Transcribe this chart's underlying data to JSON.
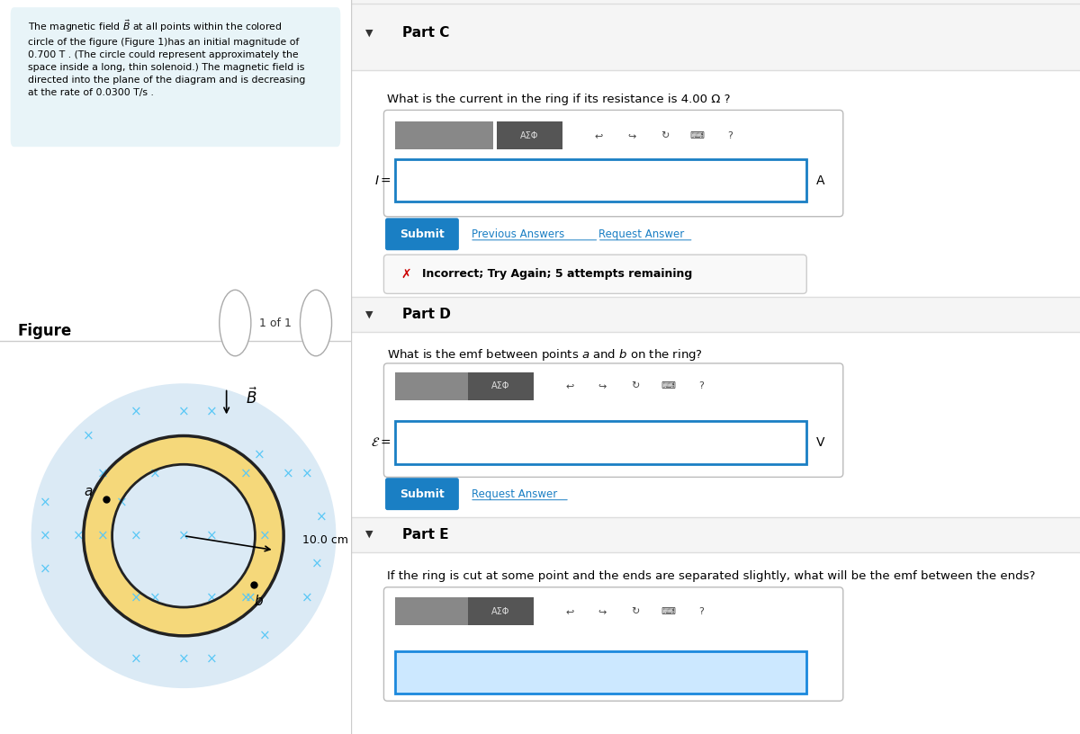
{
  "fig_width": 12.0,
  "fig_height": 8.16,
  "dpi": 100,
  "left_panel_bg": "#e8f4f8",
  "left_panel_text": "The magnetic field $\\vec{B}$ at all points within the colored\ncircle of the figure (Figure 1)has an initial magnitude of\n0.700 T . (The circle could represent approximately the\nspace inside a long, thin solenoid.) The magnetic field is\ndirected into the plane of the diagram and is decreasing\nat the rate of 0.0300 T/s .",
  "figure_label": "Figure",
  "nav_text": "1 of 1",
  "circle_bg": "#dbeaf5",
  "ring_outer_color": "#f5d87a",
  "ring_inner_color": "#f5d87a",
  "ring_border_color": "#222222",
  "x_color": "#5bc8f5",
  "B_label": "$\\vec{B}$",
  "radius_label": "10.0 cm",
  "point_a_label": "$a$",
  "point_b_label": "$b$",
  "part_c_header": "Part C",
  "part_c_question": "What is the current in the ring if its resistance is 4.00 Ω ?",
  "part_c_input_label": "$I =$",
  "part_c_unit": "A",
  "part_c_submit": "Submit",
  "part_c_prev": "Previous Answers",
  "part_c_req": "Request Answer",
  "part_c_incorrect": "Incorrect; Try Again; 5 attempts remaining",
  "part_d_header": "Part D",
  "part_d_question": "What is the emf between points $a$ and $b$ on the ring?",
  "part_d_input_label": "$\\mathcal{E} =$",
  "part_d_unit": "V",
  "part_d_submit": "Submit",
  "part_d_req": "Request Answer",
  "part_e_header": "Part E",
  "part_e_question": "If the ring is cut at some point and the ends are separated slightly, what will be the emf between the ends?",
  "toolbar_bg": "#666666",
  "submit_bg": "#1a7fc4",
  "submit_text_color": "#ffffff",
  "link_color": "#1a7fc4",
  "incorrect_border": "#cccccc",
  "incorrect_x_color": "#cc0000",
  "header_bg": "#f0f0f0",
  "input_border": "#1a7fc4",
  "separator_color": "#cccccc"
}
